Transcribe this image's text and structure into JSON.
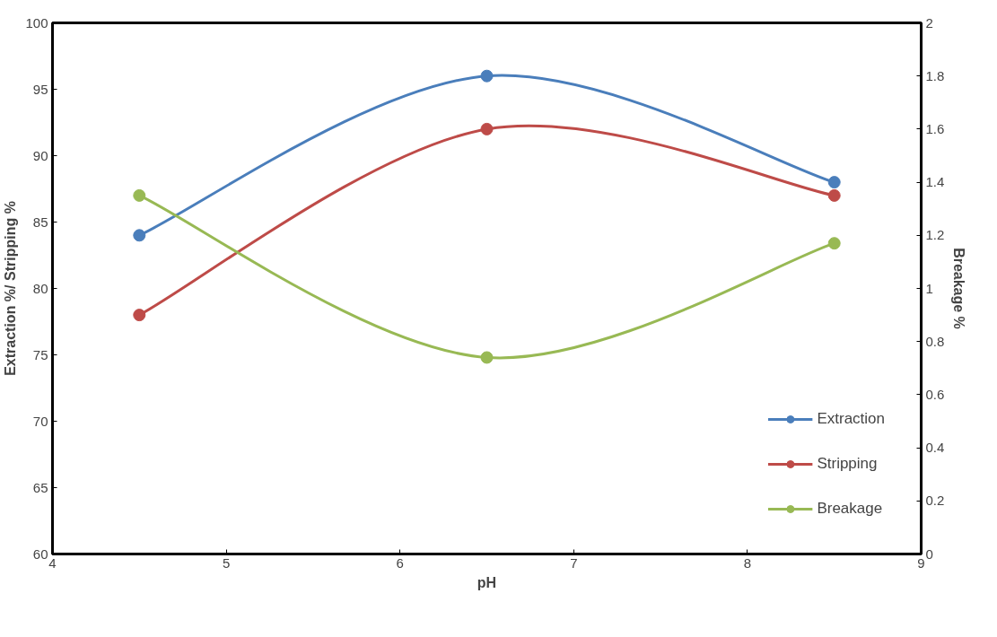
{
  "chart_data": {
    "type": "line",
    "xlabel": "pH",
    "ylabel": "Extraction %/ Stripping %",
    "y2label": "Breakage %",
    "x": [
      4.5,
      6.5,
      8.5
    ],
    "series": [
      {
        "name": "Extraction",
        "color": "#4a7ebb",
        "values": [
          84,
          96,
          88
        ]
      },
      {
        "name": "Stripping",
        "color": "#be4b48",
        "values": [
          78,
          92,
          87
        ]
      },
      {
        "name": "Breakage",
        "color": "#98b954",
        "values": [
          1.35,
          0.74,
          1.17
        ],
        "axis": "y2"
      }
    ],
    "xlim": [
      4,
      9
    ],
    "xticks": [
      4,
      5,
      6,
      7,
      8,
      9
    ],
    "ylim": [
      60,
      100
    ],
    "yticks": [
      60,
      65,
      70,
      75,
      80,
      85,
      90,
      95,
      100
    ],
    "y2lim": [
      0,
      2
    ],
    "y2ticks": [
      0,
      0.2,
      0.4,
      0.6,
      0.8,
      1,
      1.2,
      1.4,
      1.6,
      1.8,
      2
    ],
    "marker": "circle",
    "line_style": "solid",
    "grid": false,
    "legend": "bottom right"
  }
}
